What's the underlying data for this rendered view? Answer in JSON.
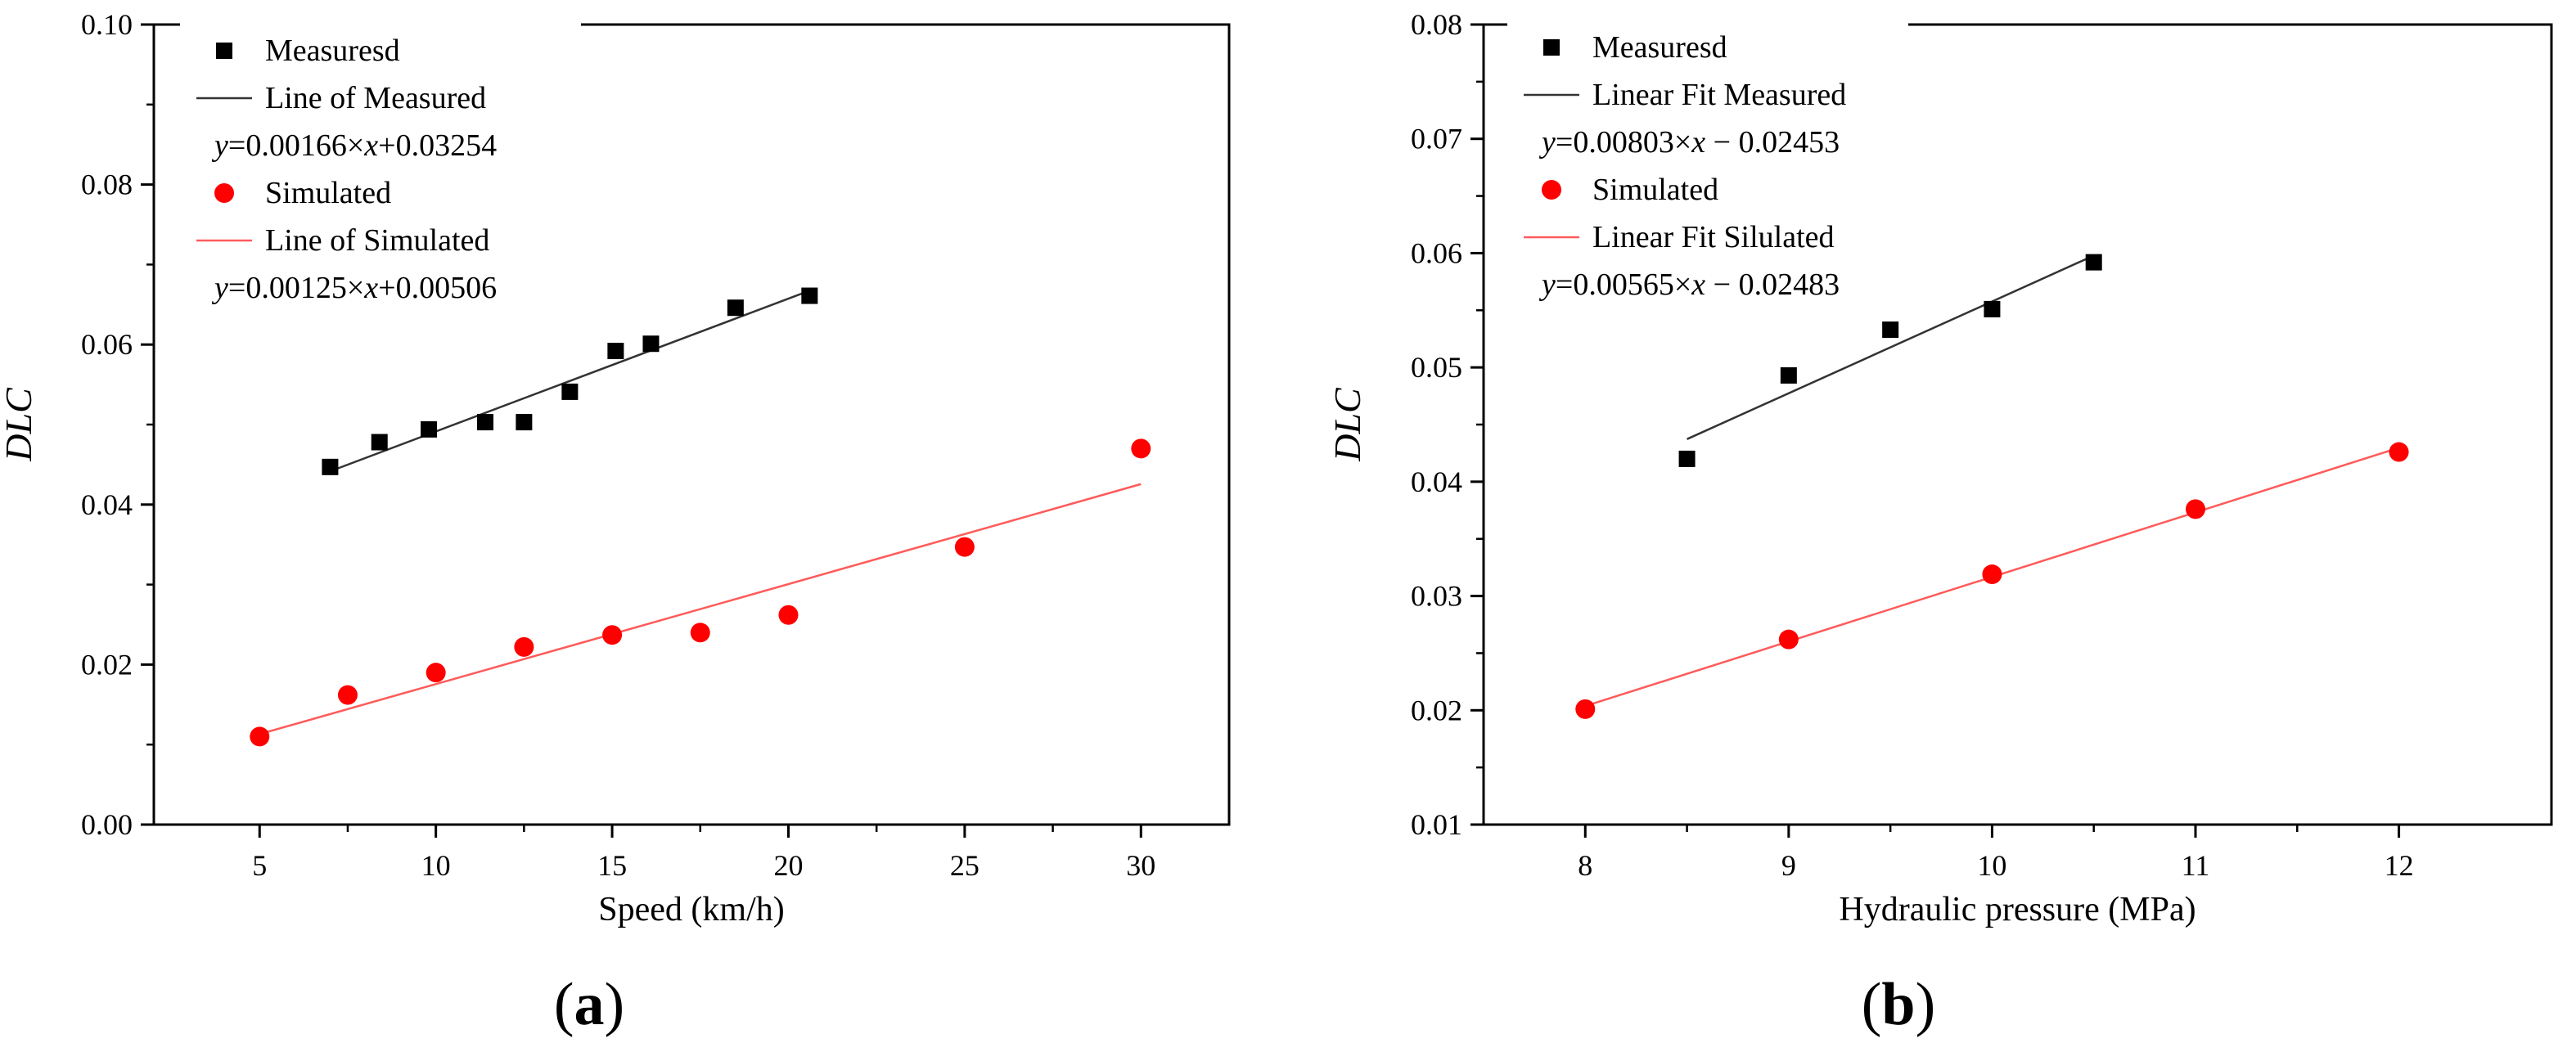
{
  "chart_data": [
    {
      "type": "scatter",
      "panel_label": "(a)",
      "xlabel": "Speed (km/h)",
      "ylabel": "DLC",
      "xlim": [
        2,
        32.5
      ],
      "ylim": [
        0,
        0.1
      ],
      "xticks": [
        5,
        10,
        15,
        20,
        25,
        30
      ],
      "yticks": [
        0.0,
        0.02,
        0.04,
        0.06,
        0.08,
        0.1
      ],
      "ytick_labels": [
        "0.00",
        "0.02",
        "0.04",
        "0.06",
        "0.08",
        "0.10"
      ],
      "series": [
        {
          "name": "Measuresd",
          "marker": "square",
          "color": "#000000",
          "x": [
            7,
            8.4,
            9.8,
            11.4,
            12.5,
            13.8,
            15.1,
            16.1,
            18.5,
            20.6
          ],
          "y": [
            0.0447,
            0.0478,
            0.0494,
            0.0503,
            0.0503,
            0.0541,
            0.0592,
            0.0601,
            0.0646,
            0.0661
          ]
        },
        {
          "name": "Simulated",
          "marker": "circle",
          "color": "#ff0000",
          "x": [
            5,
            7.5,
            10,
            12.5,
            15,
            17.5,
            20,
            25,
            30
          ],
          "y": [
            0.011,
            0.0162,
            0.019,
            0.0222,
            0.0237,
            0.024,
            0.0262,
            0.0347,
            0.047
          ]
        }
      ],
      "fits": [
        {
          "name": "Line of Measured",
          "equation": "y=0.00166×x+0.03254",
          "slope": 0.00166,
          "intercept": 0.03254,
          "x_range": [
            7,
            20.6
          ],
          "color": "#333333"
        },
        {
          "name": "Line of Simulated",
          "equation": "y=0.00125×x+0.00506",
          "slope": 0.00125,
          "intercept": 0.00506,
          "x_range": [
            5,
            30
          ],
          "color": "#ff5a5a"
        }
      ]
    },
    {
      "type": "scatter",
      "panel_label": "(b)",
      "xlabel": "Hydraulic pressure (MPa)",
      "ylabel": "DLC",
      "xlim": [
        7.5,
        12.75
      ],
      "ylim": [
        0.01,
        0.08
      ],
      "xticks": [
        8,
        9,
        10,
        11,
        12
      ],
      "yticks": [
        0.01,
        0.02,
        0.03,
        0.04,
        0.05,
        0.06,
        0.07,
        0.08
      ],
      "ytick_labels": [
        "0.01",
        "0.02",
        "0.03",
        "0.04",
        "0.05",
        "0.06",
        "0.07",
        "0.08"
      ],
      "series": [
        {
          "name": "Measuresd",
          "marker": "square",
          "color": "#000000",
          "x": [
            8.5,
            9,
            9.5,
            10,
            10.5
          ],
          "y": [
            0.042,
            0.0493,
            0.0533,
            0.0551,
            0.0592
          ]
        },
        {
          "name": "Simulated",
          "marker": "circle",
          "color": "#ff0000",
          "x": [
            8,
            9,
            10,
            11,
            12
          ],
          "y": [
            0.0201,
            0.0262,
            0.0319,
            0.0376,
            0.0426
          ]
        }
      ],
      "fits": [
        {
          "name": "Linear Fit Measured",
          "equation": "y=0.00803×x − 0.02453",
          "slope": 0.00803,
          "intercept": -0.02453,
          "x_range": [
            8.5,
            10.5
          ],
          "color": "#333333"
        },
        {
          "name": "Linear Fit Silulated",
          "equation": "y=0.00565×x − 0.02483",
          "slope": 0.00565,
          "intercept": -0.02483,
          "x_range": [
            8,
            12
          ],
          "color": "#ff5a5a"
        }
      ]
    }
  ]
}
